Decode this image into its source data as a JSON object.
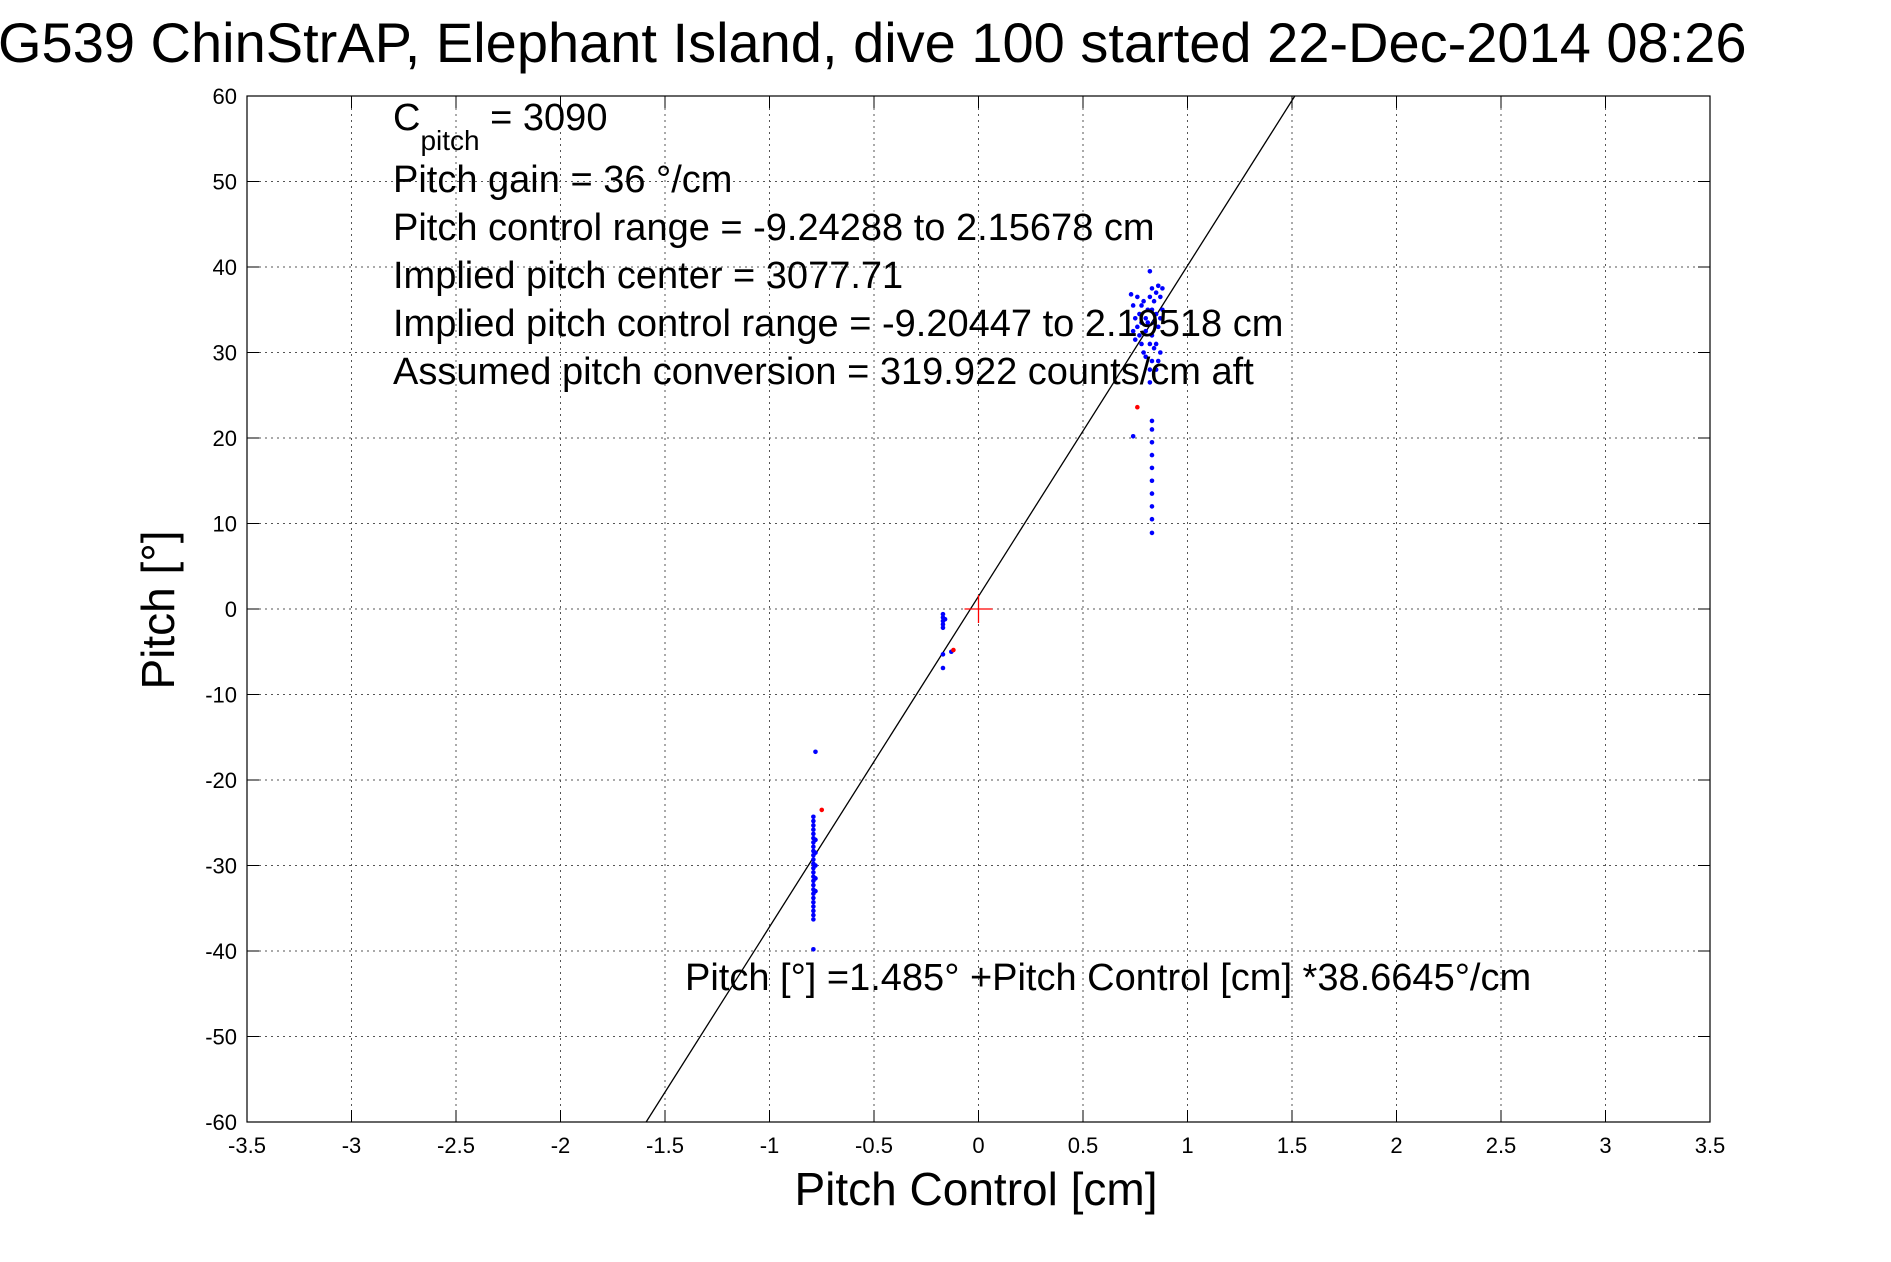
{
  "chart_data": {
    "type": "scatter",
    "title": "G539 ChinStrAP, Elephant Island, dive 100 started 22-Dec-2014 08:26",
    "xlabel": "Pitch Control [cm]",
    "ylabel": "Pitch [°]",
    "xlim": [
      -3.5,
      3.5
    ],
    "ylim": [
      -60,
      60
    ],
    "xticks": [
      -3.5,
      -3,
      -2.5,
      -2,
      -1.5,
      -1,
      -0.5,
      0,
      0.5,
      1,
      1.5,
      2,
      2.5,
      3,
      3.5
    ],
    "xtick_labels": [
      "-3.5",
      "-3",
      "-2.5",
      "-2",
      "-1.5",
      "-1",
      "-0.5",
      "0",
      "0.5",
      "1",
      "1.5",
      "2",
      "2.5",
      "3",
      "3.5"
    ],
    "yticks": [
      -60,
      -50,
      -40,
      -30,
      -20,
      -10,
      0,
      10,
      20,
      30,
      40,
      50,
      60
    ],
    "ytick_labels": [
      "-60",
      "-50",
      "-40",
      "-30",
      "-20",
      "-10",
      "0",
      "10",
      "20",
      "30",
      "40",
      "50",
      "60"
    ],
    "grid": true,
    "annotations": {
      "c_pitch_symbol": "C",
      "c_pitch_subscript": "pitch",
      "c_pitch_value": " = 3090",
      "pitch_gain": "Pitch gain = 36 °/cm",
      "control_range": "Pitch control range = -9.24288 to 2.15678 cm",
      "implied_center": "Implied pitch center = 3077.71",
      "implied_range": "Implied pitch control range = -9.20447 to 2.19518 cm",
      "conversion": "Assumed pitch conversion = 319.922 counts/cm aft",
      "fit_equation": "Pitch [°] =1.485° +Pitch Control [cm] *38.6645°/cm"
    },
    "fit_line": {
      "intercept": 1.485,
      "slope": 38.6645
    },
    "center_marker": {
      "x": 0,
      "y": 0,
      "color": "#ff0000"
    },
    "series": [
      {
        "color": "#0000ff",
        "points": [
          [
            -0.78,
            -16.7
          ],
          [
            -0.79,
            -24.3
          ],
          [
            -0.79,
            -24.8
          ],
          [
            -0.79,
            -25.3
          ],
          [
            -0.79,
            -25.8
          ],
          [
            -0.79,
            -26.3
          ],
          [
            -0.79,
            -26.8
          ],
          [
            -0.79,
            -27.3
          ],
          [
            -0.79,
            -27.8
          ],
          [
            -0.79,
            -28.3
          ],
          [
            -0.79,
            -28.8
          ],
          [
            -0.79,
            -29.3
          ],
          [
            -0.79,
            -29.8
          ],
          [
            -0.79,
            -30.3
          ],
          [
            -0.79,
            -30.8
          ],
          [
            -0.79,
            -31.3
          ],
          [
            -0.79,
            -31.8
          ],
          [
            -0.79,
            -32.3
          ],
          [
            -0.79,
            -32.8
          ],
          [
            -0.79,
            -33.3
          ],
          [
            -0.79,
            -33.8
          ],
          [
            -0.79,
            -34.3
          ],
          [
            -0.79,
            -34.8
          ],
          [
            -0.79,
            -35.3
          ],
          [
            -0.79,
            -35.8
          ],
          [
            -0.79,
            -36.3
          ],
          [
            -0.78,
            -27.0
          ],
          [
            -0.78,
            -28.5
          ],
          [
            -0.78,
            -30.0
          ],
          [
            -0.78,
            -31.5
          ],
          [
            -0.78,
            -33.0
          ],
          [
            -0.79,
            -39.8
          ],
          [
            -0.17,
            -0.6
          ],
          [
            -0.17,
            -1.0
          ],
          [
            -0.17,
            -1.4
          ],
          [
            -0.17,
            -1.8
          ],
          [
            -0.17,
            -2.2
          ],
          [
            -0.16,
            -1.2
          ],
          [
            -0.17,
            -5.3
          ],
          [
            -0.17,
            -6.9
          ],
          [
            -0.13,
            -5.0
          ],
          [
            0.74,
            20.2
          ],
          [
            0.83,
            8.9
          ],
          [
            0.83,
            10.5
          ],
          [
            0.83,
            12.0
          ],
          [
            0.83,
            13.5
          ],
          [
            0.83,
            15.0
          ],
          [
            0.83,
            16.5
          ],
          [
            0.83,
            18.0
          ],
          [
            0.83,
            19.5
          ],
          [
            0.83,
            21.0
          ],
          [
            0.83,
            22.0
          ],
          [
            0.82,
            26.5
          ],
          [
            0.82,
            28.0
          ],
          [
            0.83,
            29.0
          ],
          [
            0.73,
            36.8
          ],
          [
            0.74,
            35.5
          ],
          [
            0.75,
            34.0
          ],
          [
            0.76,
            33.0
          ],
          [
            0.77,
            32.0
          ],
          [
            0.78,
            31.0
          ],
          [
            0.79,
            30.0
          ],
          [
            0.8,
            32.5
          ],
          [
            0.81,
            35.0
          ],
          [
            0.82,
            36.5
          ],
          [
            0.82,
            39.5
          ],
          [
            0.83,
            37.5
          ],
          [
            0.84,
            36.0
          ],
          [
            0.85,
            34.5
          ],
          [
            0.86,
            33.0
          ],
          [
            0.86,
            37.8
          ],
          [
            0.87,
            36.5
          ],
          [
            0.88,
            35.0
          ],
          [
            0.87,
            30.0
          ],
          [
            0.86,
            29.0
          ],
          [
            0.85,
            28.0
          ],
          [
            0.84,
            30.5
          ],
          [
            0.83,
            32.0
          ],
          [
            0.8,
            34.0
          ],
          [
            0.78,
            35.5
          ],
          [
            0.76,
            36.5
          ],
          [
            0.75,
            31.5
          ],
          [
            0.77,
            34.5
          ],
          [
            0.79,
            36.0
          ],
          [
            0.81,
            33.5
          ],
          [
            0.84,
            33.5
          ],
          [
            0.85,
            31.0
          ],
          [
            0.74,
            32.5
          ],
          [
            0.88,
            37.5
          ],
          [
            0.87,
            34.0
          ],
          [
            0.82,
            31.0
          ],
          [
            0.8,
            29.5
          ],
          [
            0.78,
            33.5
          ],
          [
            0.85,
            37.0
          ],
          [
            0.83,
            35.0
          ]
        ]
      },
      {
        "color": "#ff0000",
        "points": [
          [
            -0.75,
            -23.5
          ],
          [
            -0.12,
            -4.8
          ],
          [
            0.76,
            23.6
          ]
        ]
      }
    ]
  }
}
